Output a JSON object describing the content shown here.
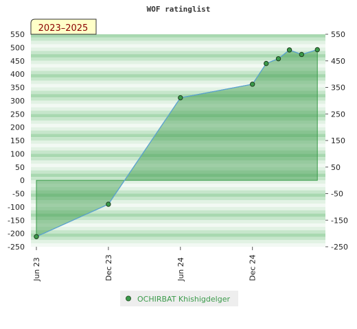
{
  "chart_data": {
    "type": "area",
    "title": "WOF ratinglist",
    "period_badge": "2023–2025",
    "ylim": [
      -250,
      550
    ],
    "yticks": [
      550,
      500,
      450,
      400,
      350,
      300,
      250,
      200,
      150,
      100,
      50,
      0,
      -50,
      -100,
      -150,
      -200,
      -250
    ],
    "y2ticks": [
      550,
      450,
      350,
      250,
      150,
      50,
      -50,
      -150,
      -250
    ],
    "x_tick_labels": [
      "Jun 23",
      "Dec 23",
      "Jun 24",
      "Dec 24"
    ],
    "x_tick_dates": [
      "2023-06-01",
      "2023-12-01",
      "2024-06-01",
      "2024-12-01"
    ],
    "xlim": [
      "2023-06-01",
      "2025-06-01"
    ],
    "legend_position": "bottom",
    "grid": true,
    "series": [
      {
        "name": "OCHIRBAT Khishigdelger",
        "color": "#3a9a4a",
        "line_color": "#5aa0d8",
        "x": [
          "2023-06-01",
          "2023-12-01",
          "2024-06-01",
          "2024-12-01",
          "2025-01-05",
          "2025-02-05",
          "2025-03-05",
          "2025-04-05",
          "2025-05-15"
        ],
        "y": [
          -212,
          -90,
          311,
          362,
          440,
          458,
          491,
          474,
          492
        ]
      }
    ]
  }
}
